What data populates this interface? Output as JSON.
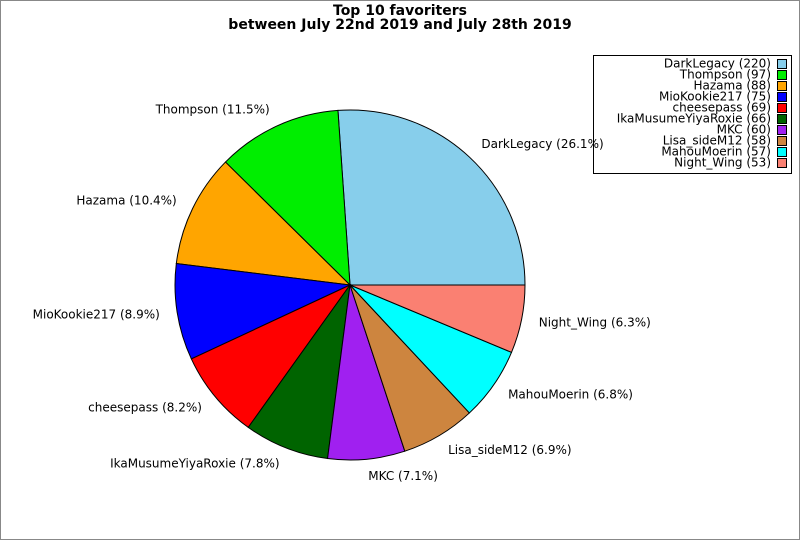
{
  "chart_data": {
    "type": "pie",
    "title": "Top 10 favoriters",
    "subtitle": "between July 22nd 2019 and July 28th 2019",
    "categories": [
      "DarkLegacy",
      "Thompson",
      "Hazama",
      "MioKookie217",
      "cheesepass",
      "IkaMusumeYiyaRoxie",
      "MKC",
      "Lisa_sideM12",
      "MahouMoerin",
      "Night_Wing"
    ],
    "values": [
      220,
      97,
      88,
      75,
      69,
      66,
      60,
      58,
      57,
      53
    ],
    "slice_labels": [
      "DarkLegacy (26.1%)",
      "Thompson (11.5%)",
      "Hazama (10.4%)",
      "MioKookie217 (8.9%)",
      "cheesepass (8.2%)",
      "IkaMusumeYiyaRoxie (7.8%)",
      "MKC (7.1%)",
      "Lisa_sideM12 (6.9%)",
      "MahouMoerin (6.8%)",
      "Night_Wing (6.3%)"
    ],
    "legend_labels": [
      "DarkLegacy (220)",
      "Thompson (97)",
      "Hazama (88)",
      "MioKookie217 (75)",
      "cheesepass (69)",
      "IkaMusumeYiyaRoxie (66)",
      "MKC (60)",
      "Lisa_sideM12 (58)",
      "MahouMoerin (57)",
      "Night_Wing (53)"
    ],
    "colors": [
      "#87ceeb",
      "#00ee00",
      "#ffa500",
      "#0000ff",
      "#ff0000",
      "#006400",
      "#a020f0",
      "#cd853f",
      "#00ffff",
      "#fa8072"
    ],
    "legend": "upper right"
  }
}
